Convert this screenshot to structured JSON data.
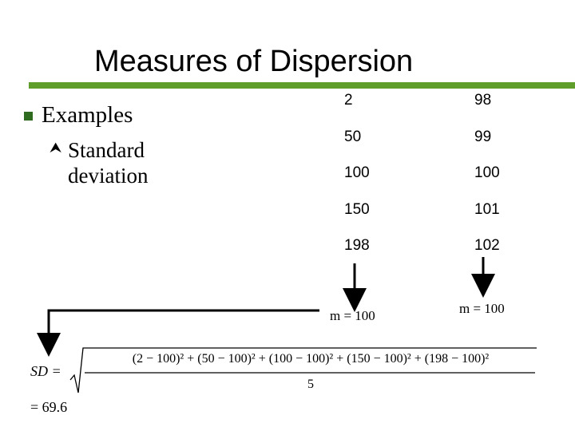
{
  "slide": {
    "title": "Measures of Dispersion",
    "bullet": "Examples",
    "sub_bullet_line1": "Standard",
    "sub_bullet_line2": "deviation"
  },
  "data_columns": [
    {
      "values": [
        "2",
        "50",
        "100",
        "150",
        "198"
      ],
      "mean_label": "m = 100"
    },
    {
      "values": [
        "98",
        "99",
        "100",
        "101",
        "102"
      ],
      "mean_label": "m = 100"
    }
  ],
  "formula": {
    "lhs": "SD =",
    "numerator": "(2 − 100)² + (50 − 100)² + (100 − 100)² + (150 − 100)² + (198 − 100)²",
    "denominator": "5",
    "result": "= 69.6"
  }
}
